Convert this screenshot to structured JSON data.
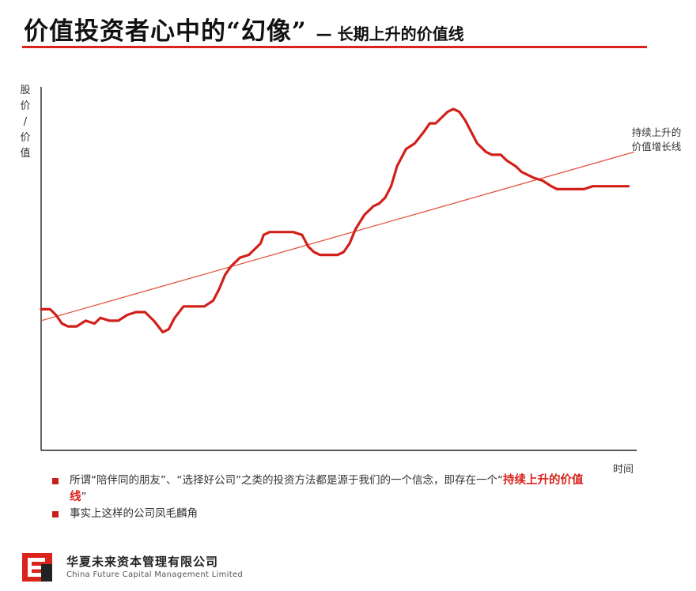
{
  "header": {
    "title": "价值投资者心中的“幻像”",
    "subtitle": "— 长期上升的价值线"
  },
  "colors": {
    "accent": "#d9231b",
    "price_line": "#d1201a",
    "value_line": "#e2553f",
    "axis": "#222222"
  },
  "chart_data": {
    "type": "line",
    "ylabel": "股价/价值",
    "ylabel_lines": [
      "股",
      "价",
      "/",
      "价",
      "值"
    ],
    "xlabel": "时间",
    "xlim": [
      0,
      100
    ],
    "ylim": [
      0,
      100
    ],
    "grid": false,
    "legend": "none",
    "annotations": [
      {
        "text_lines": [
          "持续上升的",
          "价值增长线"
        ],
        "points_to": "trend-line"
      }
    ],
    "series": [
      {
        "key": "stock-price",
        "x": [
          0,
          1.5,
          2.5,
          3.5,
          4.5,
          6,
          7.5,
          9,
          10,
          11.5,
          13,
          14.5,
          16,
          17.5,
          19,
          20.5,
          21.5,
          22.5,
          24,
          25.5,
          27.5,
          29,
          30,
          31,
          32,
          33.5,
          35,
          36,
          37,
          37.5,
          38.5,
          40,
          41.5,
          42.5,
          44,
          45,
          46,
          47,
          48.5,
          50,
          51,
          52,
          53,
          54.5,
          56,
          57,
          58,
          59,
          60,
          61.5,
          63,
          64.5,
          65.5,
          66.5,
          67.5,
          68.5,
          69.5,
          70.5,
          71.5,
          72.5,
          73.5,
          74.5,
          75,
          76,
          77.5,
          78.5,
          80,
          81,
          83,
          84.5,
          86,
          87,
          88.5,
          90,
          91.5,
          93,
          94,
          95,
          96,
          97,
          98,
          99
        ],
        "values": [
          30,
          30,
          28,
          25,
          24,
          24,
          26,
          25,
          27,
          26,
          26,
          28,
          29,
          29,
          26,
          22,
          23,
          27,
          31,
          31,
          31,
          33,
          37,
          42,
          45,
          48,
          49,
          51,
          53,
          56,
          57,
          57,
          57,
          57,
          56,
          52,
          50,
          49,
          49,
          49,
          50,
          53,
          58,
          63,
          66,
          67,
          69,
          73,
          80,
          86,
          88,
          92,
          95,
          95,
          97,
          99,
          100,
          99,
          96,
          92,
          88,
          86,
          85,
          84,
          84,
          82,
          80,
          78,
          76,
          75,
          73,
          72,
          72,
          72,
          72,
          73,
          73,
          73,
          73,
          73,
          73,
          73
        ]
      },
      {
        "key": "value-line",
        "x": [
          0,
          100
        ],
        "values": [
          26,
          85
        ]
      }
    ]
  },
  "bullets": [
    {
      "text": "所谓“陪伴同的朋友”、“选择好公司”之类的投资方法都是源于我们的一个信念，即存在一个“",
      "highlight": "持续上升的价值线",
      "text_after": "”"
    },
    {
      "text": "事实上这样的公司凤毛麟角",
      "highlight": "",
      "text_after": ""
    }
  ],
  "footer": {
    "company": "华夏未来资本管理有限公司",
    "company_en": "China Future Capital Management Limited"
  }
}
